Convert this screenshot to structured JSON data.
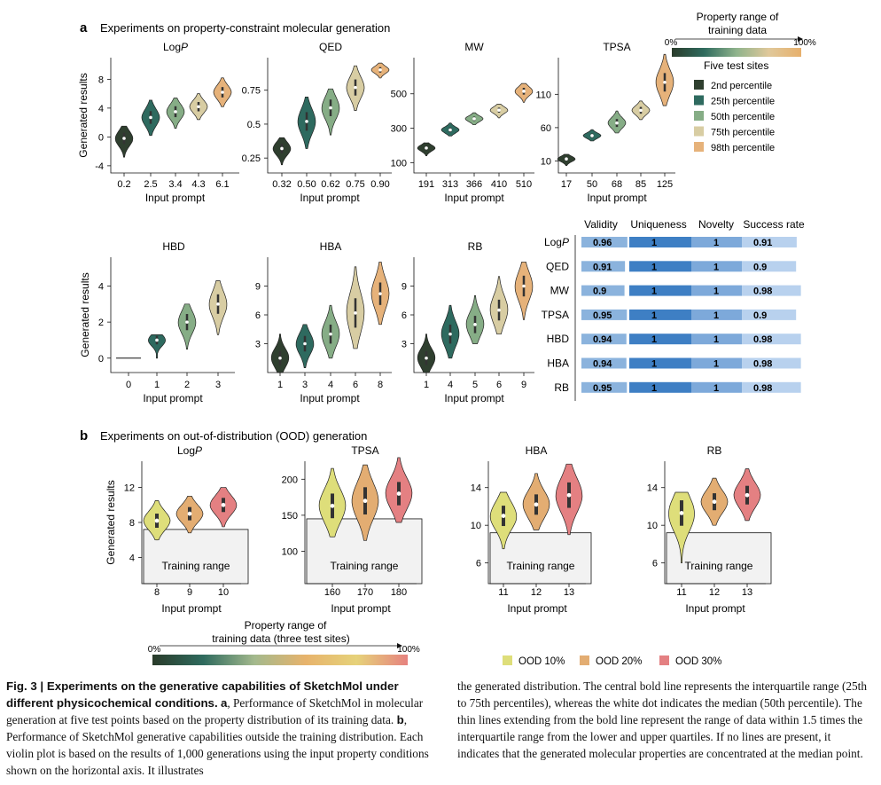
{
  "panel_a": {
    "letter": "a",
    "title": "Experiments on property-constraint molecular generation",
    "colorbar": {
      "title_line1": "Property range of",
      "title_line2": "training data",
      "min_label": "0%",
      "max_label": "100%",
      "colors": [
        "#2a3b2a",
        "#2f6b5e",
        "#8fb38c",
        "#e0c89a",
        "#e7b06c"
      ]
    },
    "legend": {
      "title": "Five test sites",
      "items": [
        {
          "label": "2nd percentile",
          "color": "#2f3f2f"
        },
        {
          "label": "25th percentile",
          "color": "#2e6a5f"
        },
        {
          "label": "50th percentile",
          "color": "#86ad86"
        },
        {
          "label": "75th percentile",
          "color": "#d8cda3"
        },
        {
          "label": "98th percentile",
          "color": "#e6b27a"
        }
      ]
    },
    "table": {
      "columns": [
        "Validity",
        "Uniqueness",
        "Novelty",
        "Success rate"
      ],
      "rows": [
        {
          "label": "LogP",
          "values": [
            "0.96",
            "1",
            "1",
            "0.91"
          ]
        },
        {
          "label": "QED",
          "values": [
            "0.91",
            "1",
            "1",
            "0.9"
          ]
        },
        {
          "label": "MW",
          "values": [
            "0.9",
            "1",
            "1",
            "0.98"
          ]
        },
        {
          "label": "TPSA",
          "values": [
            "0.95",
            "1",
            "1",
            "0.9"
          ]
        },
        {
          "label": "HBD",
          "values": [
            "0.94",
            "1",
            "1",
            "0.98"
          ]
        },
        {
          "label": "HBA",
          "values": [
            "0.94",
            "1",
            "1",
            "0.98"
          ]
        },
        {
          "label": "RB",
          "values": [
            "0.95",
            "1",
            "1",
            "0.98"
          ]
        }
      ]
    }
  },
  "panel_b": {
    "letter": "b",
    "title": "Experiments on out-of-distribution (OOD) generation",
    "colorbar": {
      "title_line1": "Property range of",
      "title_line2": "training data (three test sites)",
      "min_label": "0%",
      "max_label": "100%",
      "colors": [
        "#2a3b2a",
        "#2f6b5e",
        "#a3b98d",
        "#e7b36c",
        "#e6d27a",
        "#e6827f"
      ]
    },
    "legend": [
      {
        "label": "OOD 10%",
        "color": "#dede7a"
      },
      {
        "label": "OOD 20%",
        "color": "#e3ad72"
      },
      {
        "label": "OOD 30%",
        "color": "#e48082"
      }
    ]
  },
  "chart_data": [
    {
      "type": "violin",
      "title": "LogP",
      "xlabel": "Input prompt",
      "ylabel": "Generated results",
      "categories": [
        "0.2",
        "2.5",
        "3.4",
        "4.3",
        "6.1"
      ],
      "medians": [
        -0.2,
        2.7,
        3.5,
        4.2,
        6.2
      ],
      "ranges": [
        [
          -2.8,
          1.5
        ],
        [
          0.2,
          5.1
        ],
        [
          1.2,
          5.4
        ],
        [
          2.4,
          6.0
        ],
        [
          4.2,
          8.2
        ]
      ],
      "yticks": [
        -4,
        0,
        4,
        8
      ],
      "ylim": [
        -5,
        11
      ]
    },
    {
      "type": "violin",
      "title": "QED",
      "xlabel": "Input prompt",
      "ylabel": "",
      "categories": [
        "0.32",
        "0.50",
        "0.62",
        "0.75",
        "0.90"
      ],
      "medians": [
        0.32,
        0.52,
        0.62,
        0.77,
        0.9
      ],
      "ranges": [
        [
          0.2,
          0.4
        ],
        [
          0.32,
          0.7
        ],
        [
          0.42,
          0.76
        ],
        [
          0.6,
          0.93
        ],
        [
          0.84,
          0.95
        ]
      ],
      "yticks": [
        0.25,
        0.5,
        0.75
      ],
      "ylim": [
        0.14,
        0.99
      ]
    },
    {
      "type": "violin",
      "title": "MW",
      "xlabel": "Input prompt",
      "ylabel": "",
      "categories": [
        "191",
        "313",
        "366",
        "410",
        "510"
      ],
      "medians": [
        185,
        290,
        355,
        405,
        515
      ],
      "ranges": [
        [
          140,
          215
        ],
        [
          255,
          330
        ],
        [
          320,
          390
        ],
        [
          360,
          440
        ],
        [
          450,
          560
        ]
      ],
      "yticks": [
        100,
        300,
        500
      ],
      "ylim": [
        40,
        710
      ]
    },
    {
      "type": "violin",
      "title": "TPSA",
      "xlabel": "Input prompt",
      "ylabel": "",
      "categories": [
        "17",
        "50",
        "68",
        "85",
        "125"
      ],
      "medians": [
        13,
        48,
        67,
        86,
        128
      ],
      "ranges": [
        [
          3,
          20
        ],
        [
          40,
          57
        ],
        [
          52,
          85
        ],
        [
          72,
          100
        ],
        [
          93,
          170
        ]
      ],
      "yticks": [
        10,
        60,
        110
      ],
      "ylim": [
        -8,
        165
      ]
    },
    {
      "type": "violin",
      "title": "HBD",
      "xlabel": "Input prompt",
      "ylabel": "Generated results",
      "categories": [
        "0",
        "1",
        "2",
        "3"
      ],
      "medians": [
        0,
        1,
        2,
        3
      ],
      "ranges": [
        [
          0,
          0
        ],
        [
          0,
          1.3
        ],
        [
          0.5,
          3.0
        ],
        [
          1.3,
          4.3
        ]
      ],
      "yticks": [
        0,
        2,
        4
      ],
      "ylim": [
        -0.8,
        5.6
      ]
    },
    {
      "type": "violin",
      "title": "HBA",
      "xlabel": "Input prompt",
      "ylabel": "",
      "categories": [
        "1",
        "3",
        "4",
        "6",
        "8"
      ],
      "medians": [
        1.5,
        3,
        4,
        6.2,
        8.2
      ],
      "ranges": [
        [
          0,
          4
        ],
        [
          0.5,
          5
        ],
        [
          1.5,
          7
        ],
        [
          2.5,
          11
        ],
        [
          5,
          11.5
        ]
      ],
      "yticks": [
        3,
        6,
        9
      ],
      "ylim": [
        0,
        12
      ]
    },
    {
      "type": "violin",
      "title": "RB",
      "xlabel": "Input prompt",
      "ylabel": "",
      "categories": [
        "1",
        "4",
        "5",
        "6",
        "9"
      ],
      "medians": [
        1.5,
        4,
        5,
        6.5,
        9
      ],
      "ranges": [
        [
          0,
          4
        ],
        [
          1.5,
          7
        ],
        [
          3,
          8
        ],
        [
          4,
          10
        ],
        [
          5.5,
          11.5
        ]
      ],
      "yticks": [
        3,
        6,
        9
      ],
      "ylim": [
        0,
        12
      ]
    },
    {
      "type": "violin",
      "title": "LogP",
      "xlabel": "Input prompt",
      "ylabel": "Generated results",
      "categories": [
        "8",
        "9",
        "10"
      ],
      "medians": [
        8.2,
        9,
        10
      ],
      "ranges": [
        [
          6,
          10.5
        ],
        [
          6.8,
          11
        ],
        [
          7.5,
          12
        ]
      ],
      "yticks": [
        4,
        8,
        12
      ],
      "ylim": [
        1,
        15
      ],
      "training_range_top": 7.2,
      "band_label": "Training range",
      "series": [
        "OOD 10%",
        "OOD 20%",
        "OOD 30%"
      ]
    },
    {
      "type": "violin",
      "title": "TPSA",
      "xlabel": "Input prompt",
      "ylabel": "",
      "categories": [
        "160",
        "170",
        "180"
      ],
      "medians": [
        163,
        170,
        180
      ],
      "ranges": [
        [
          120,
          215
        ],
        [
          115,
          220
        ],
        [
          140,
          230
        ]
      ],
      "yticks": [
        100,
        150,
        200
      ],
      "ylim": [
        55,
        225
      ],
      "training_range_top": 145,
      "band_label": "Training range",
      "series": [
        "OOD 10%",
        "OOD 20%",
        "OOD 30%"
      ]
    },
    {
      "type": "violin",
      "title": "HBA",
      "xlabel": "Input prompt",
      "ylabel": "",
      "categories": [
        "11",
        "12",
        "13"
      ],
      "medians": [
        11,
        12.2,
        13.2
      ],
      "ranges": [
        [
          7.5,
          13.5
        ],
        [
          9.5,
          15.5
        ],
        [
          9,
          16.5
        ]
      ],
      "yticks": [
        6,
        10,
        14
      ],
      "ylim": [
        3.8,
        16.8
      ],
      "training_range_top": 9.2,
      "band_label": "Training range",
      "series": [
        "OOD 10%",
        "OOD 20%",
        "OOD 30%"
      ]
    },
    {
      "type": "violin",
      "title": "RB",
      "xlabel": "Input prompt",
      "ylabel": "",
      "categories": [
        "11",
        "12",
        "13"
      ],
      "medians": [
        11.3,
        12.5,
        13.2
      ],
      "ranges": [
        [
          6,
          13.5
        ],
        [
          10,
          15
        ],
        [
          10.5,
          16
        ]
      ],
      "yticks": [
        6,
        10,
        14
      ],
      "ylim": [
        3.8,
        16.8
      ],
      "training_range_top": 9.2,
      "band_label": "Training range",
      "series": [
        "OOD 10%",
        "OOD 20%",
        "OOD 30%"
      ]
    }
  ],
  "caption": {
    "fig_label": "Fig. 3 | Experiments on the generative capabilities of SketchMol under different physicochemical conditions.",
    "part_a_label": "a",
    "part_a_text": ", Performance of SketchMol in molecular generation at five test points based on the property distribution of its training data.",
    "part_b_label": "b",
    "part_b_text": ", Performance of SketchMol generative capabilities outside the training distribution. Each violin plot is based on the results of 1,000 generations using the input property conditions shown on the horizontal axis. It illustrates",
    "right_text": "the generated distribution. The central bold line represents the interquartile range (25th to 75th percentiles), whereas the white dot indicates the median (50th percentile). The thin lines extending from the bold line represent the range of data within 1.5 times the interquartile range from the lower and upper quartiles. If no lines are present, it indicates that the generated molecular properties are concentrated at the median point."
  }
}
